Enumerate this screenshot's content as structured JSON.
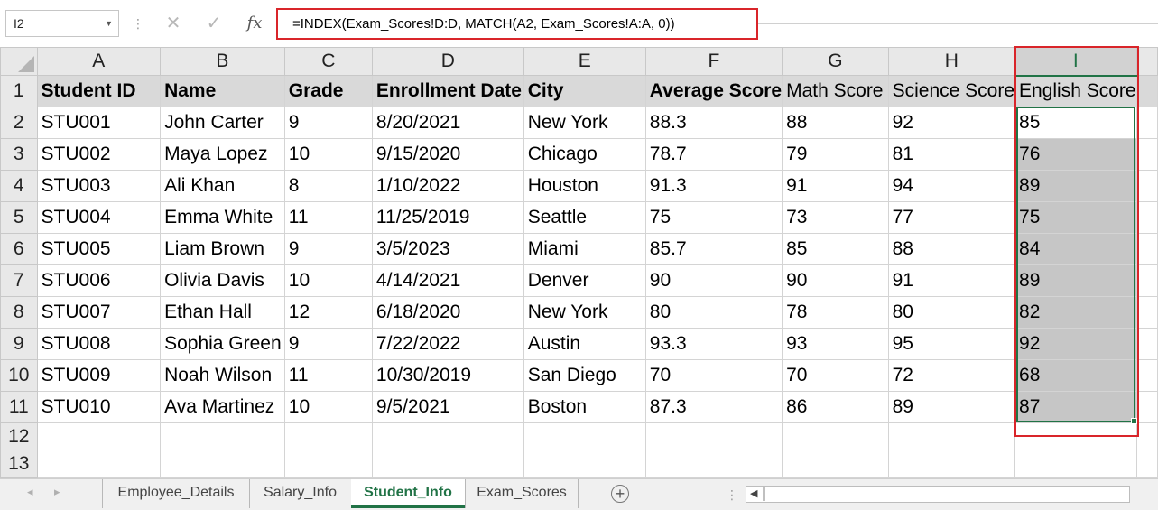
{
  "formula_bar": {
    "name_box": "I2",
    "cancel_icon": "✕",
    "enter_icon": "✓",
    "fx_label": "fx",
    "formula": "=INDEX(Exam_Scores!D:D, MATCH(A2, Exam_Scores!A:A, 0))"
  },
  "grid": {
    "column_letters": [
      "A",
      "B",
      "C",
      "D",
      "E",
      "F",
      "G",
      "H",
      "I"
    ],
    "row_numbers": [
      "1",
      "2",
      "3",
      "4",
      "5",
      "6",
      "7",
      "8",
      "9",
      "10",
      "11",
      "12",
      "13"
    ],
    "headers": [
      "Student ID",
      "Name",
      "Grade",
      "Enrollment Date",
      "City",
      "Average Score",
      "Math Score",
      "Science Score",
      "English Score"
    ],
    "rows": [
      [
        "STU001",
        "John Carter",
        "9",
        "8/20/2021",
        "New York",
        "88.3",
        "88",
        "92",
        "85"
      ],
      [
        "STU002",
        "Maya Lopez",
        "10",
        "9/15/2020",
        "Chicago",
        "78.7",
        "79",
        "81",
        "76"
      ],
      [
        "STU003",
        "Ali Khan",
        "8",
        "1/10/2022",
        "Houston",
        "91.3",
        "91",
        "94",
        "89"
      ],
      [
        "STU004",
        "Emma White",
        "11",
        "11/25/2019",
        "Seattle",
        "75",
        "73",
        "77",
        "75"
      ],
      [
        "STU005",
        "Liam Brown",
        "9",
        "3/5/2023",
        "Miami",
        "85.7",
        "85",
        "88",
        "84"
      ],
      [
        "STU006",
        "Olivia Davis",
        "10",
        "4/14/2021",
        "Denver",
        "90",
        "90",
        "91",
        "89"
      ],
      [
        "STU007",
        "Ethan Hall",
        "12",
        "6/18/2020",
        "New York",
        "80",
        "78",
        "80",
        "82"
      ],
      [
        "STU008",
        "Sophia Green",
        "9",
        "7/22/2022",
        "Austin",
        "93.3",
        "93",
        "95",
        "92"
      ],
      [
        "STU009",
        "Noah Wilson",
        "11",
        "10/30/2019",
        "San Diego",
        "70",
        "70",
        "72",
        "68"
      ],
      [
        "STU010",
        "Ava Martinez",
        "10",
        "9/5/2021",
        "Boston",
        "87.3",
        "86",
        "89",
        "87"
      ]
    ],
    "selected_range": "I2:I11",
    "active_cell": "I2"
  },
  "sheet_tabs": {
    "tabs": [
      {
        "label": "Employee_Details"
      },
      {
        "label": "Salary_Info"
      },
      {
        "label": "Student_Info"
      },
      {
        "label": "Exam_Scores"
      }
    ],
    "active": "Student_Info"
  },
  "colors": {
    "accent_green": "#217346",
    "highlight_red": "#d9252a",
    "selection_fill": "#c6c6c6",
    "header_fill": "#d9d9d9"
  }
}
